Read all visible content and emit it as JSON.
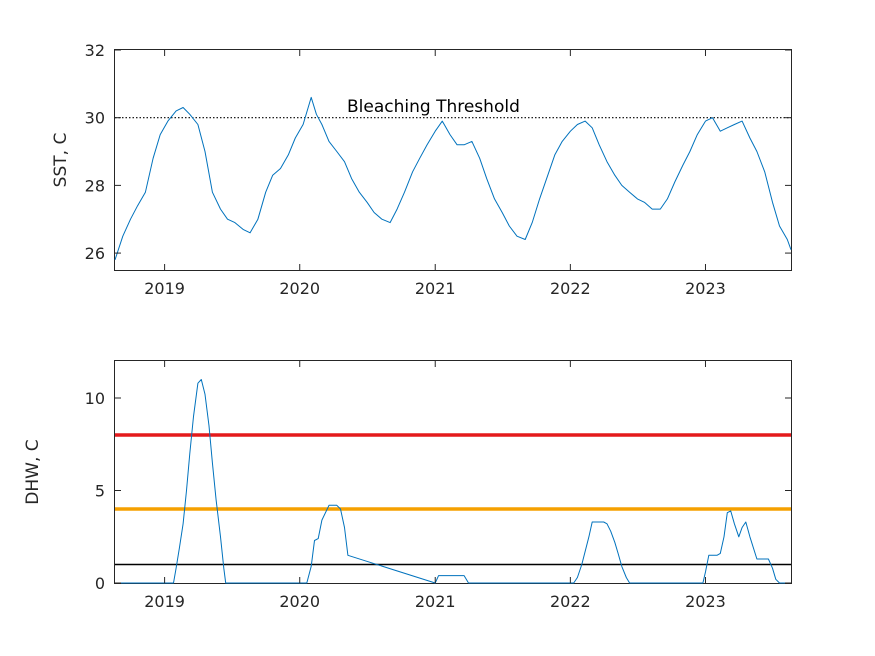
{
  "chart_data": [
    {
      "type": "line",
      "ylabel": "SST, C",
      "xlim": [
        "2018-08-20",
        "2023-08-20"
      ],
      "ylim": [
        25.5,
        32
      ],
      "yticks": [
        26,
        28,
        30,
        32
      ],
      "xticks": [
        {
          "label": "2019",
          "date": "2019-01-01"
        },
        {
          "label": "2020",
          "date": "2020-01-01"
        },
        {
          "label": "2021",
          "date": "2021-01-01"
        },
        {
          "label": "2022",
          "date": "2022-01-01"
        },
        {
          "label": "2023",
          "date": "2023-01-01"
        }
      ],
      "grid": false,
      "series": [
        {
          "color": "#0072bd",
          "x": [
            "2018-08-20",
            "2018-09-10",
            "2018-10-01",
            "2018-10-20",
            "2018-11-10",
            "2018-12-01",
            "2018-12-20",
            "2019-01-10",
            "2019-02-01",
            "2019-02-20",
            "2019-03-10",
            "2019-04-01",
            "2019-04-20",
            "2019-05-10",
            "2019-06-01",
            "2019-06-20",
            "2019-07-10",
            "2019-08-01",
            "2019-08-20",
            "2019-09-10",
            "2019-10-01",
            "2019-10-20",
            "2019-11-10",
            "2019-12-01",
            "2019-12-20",
            "2020-01-10",
            "2020-02-01",
            "2020-02-15",
            "2020-03-01",
            "2020-03-20",
            "2020-04-10",
            "2020-05-01",
            "2020-05-20",
            "2020-06-10",
            "2020-07-01",
            "2020-07-20",
            "2020-08-10",
            "2020-09-01",
            "2020-09-20",
            "2020-10-10",
            "2020-11-01",
            "2020-11-20",
            "2020-12-10",
            "2021-01-01",
            "2021-01-20",
            "2021-02-10",
            "2021-03-01",
            "2021-03-20",
            "2021-04-10",
            "2021-05-01",
            "2021-05-20",
            "2021-06-10",
            "2021-07-01",
            "2021-07-20",
            "2021-08-10",
            "2021-09-01",
            "2021-09-20",
            "2021-10-10",
            "2021-11-01",
            "2021-11-20",
            "2021-12-10",
            "2022-01-01",
            "2022-01-20",
            "2022-02-10",
            "2022-03-01",
            "2022-03-20",
            "2022-04-10",
            "2022-05-01",
            "2022-05-20",
            "2022-06-10",
            "2022-07-01",
            "2022-07-20",
            "2022-08-10",
            "2022-09-01",
            "2022-09-20",
            "2022-10-10",
            "2022-11-01",
            "2022-11-20",
            "2022-12-10",
            "2023-01-01",
            "2023-01-20",
            "2023-02-10",
            "2023-03-01",
            "2023-03-20",
            "2023-04-10",
            "2023-05-01",
            "2023-05-20",
            "2023-06-10",
            "2023-07-01",
            "2023-07-20",
            "2023-08-10",
            "2023-08-20"
          ],
          "y": [
            25.8,
            26.5,
            27.0,
            27.4,
            27.8,
            28.8,
            29.5,
            29.9,
            30.2,
            30.3,
            30.1,
            29.8,
            29.0,
            27.8,
            27.3,
            27.0,
            26.9,
            26.7,
            26.6,
            27.0,
            27.8,
            28.3,
            28.5,
            28.9,
            29.4,
            29.8,
            30.6,
            30.1,
            29.8,
            29.3,
            29.0,
            28.7,
            28.2,
            27.8,
            27.5,
            27.2,
            27.0,
            26.9,
            27.3,
            27.8,
            28.4,
            28.8,
            29.2,
            29.6,
            29.9,
            29.5,
            29.2,
            29.2,
            29.3,
            28.8,
            28.2,
            27.6,
            27.2,
            26.8,
            26.5,
            26.4,
            26.9,
            27.6,
            28.3,
            28.9,
            29.3,
            29.6,
            29.8,
            29.9,
            29.7,
            29.2,
            28.7,
            28.3,
            28.0,
            27.8,
            27.6,
            27.5,
            27.3,
            27.3,
            27.6,
            28.1,
            28.6,
            29.0,
            29.5,
            29.9,
            30.0,
            29.6,
            29.7,
            29.8,
            29.9,
            29.4,
            29.0,
            28.4,
            27.5,
            26.8,
            26.4,
            26.1
          ]
        }
      ],
      "reference_lines": [
        {
          "y": 30,
          "label": "Bleaching Threshold",
          "style": "dotted",
          "color": "#000000"
        }
      ]
    },
    {
      "type": "line",
      "ylabel": "DHW, C",
      "xlim": [
        "2018-08-20",
        "2023-08-20"
      ],
      "ylim": [
        0,
        12
      ],
      "yticks": [
        0,
        5,
        10
      ],
      "xticks": [
        {
          "label": "2019",
          "date": "2019-01-01"
        },
        {
          "label": "2020",
          "date": "2020-01-01"
        },
        {
          "label": "2021",
          "date": "2021-01-01"
        },
        {
          "label": "2022",
          "date": "2022-01-01"
        },
        {
          "label": "2023",
          "date": "2023-01-01"
        }
      ],
      "grid": false,
      "series": [
        {
          "color": "#0072bd",
          "x": [
            "2018-08-20",
            "2019-01-25",
            "2019-02-01",
            "2019-02-10",
            "2019-02-20",
            "2019-03-01",
            "2019-03-10",
            "2019-03-20",
            "2019-04-01",
            "2019-04-10",
            "2019-04-20",
            "2019-05-01",
            "2019-05-10",
            "2019-05-20",
            "2019-06-01",
            "2019-06-10",
            "2019-06-15",
            "2020-01-20",
            "2020-02-01",
            "2020-02-10",
            "2020-02-20",
            "2020-03-01",
            "2020-03-20",
            "2020-04-01",
            "2020-04-10",
            "2020-04-20",
            "2020-05-01",
            "2020-05-10",
            "2021-01-01",
            "2021-01-10",
            "2021-03-20",
            "2021-04-01",
            "2022-01-10",
            "2022-01-20",
            "2022-02-01",
            "2022-02-20",
            "2022-03-01",
            "2022-03-20",
            "2022-04-01",
            "2022-04-10",
            "2022-04-20",
            "2022-05-01",
            "2022-05-10",
            "2022-05-20",
            "2022-06-01",
            "2022-06-10",
            "2022-06-15",
            "2022-12-25",
            "2023-01-01",
            "2023-01-10",
            "2023-02-01",
            "2023-02-10",
            "2023-02-20",
            "2023-03-01",
            "2023-03-10",
            "2023-03-20",
            "2023-04-01",
            "2023-04-10",
            "2023-04-20",
            "2023-05-01",
            "2023-05-20",
            "2023-06-10",
            "2023-06-20",
            "2023-07-01",
            "2023-07-10",
            "2023-07-20",
            "2023-08-20"
          ],
          "y": [
            0,
            0,
            0.8,
            1.9,
            3.2,
            5.0,
            7.0,
            9.0,
            10.8,
            11.0,
            10.2,
            8.5,
            6.5,
            4.5,
            2.5,
            0.8,
            0,
            0,
            0.9,
            2.3,
            2.4,
            3.4,
            4.2,
            4.2,
            4.2,
            4.0,
            3.0,
            1.5,
            0,
            0.4,
            0.4,
            0,
            0,
            0.3,
            1.0,
            2.5,
            3.3,
            3.3,
            3.3,
            3.2,
            2.8,
            2.2,
            1.6,
            0.9,
            0.3,
            0,
            0,
            0,
            0.6,
            1.5,
            1.5,
            1.6,
            2.5,
            3.8,
            3.9,
            3.2,
            2.5,
            3.0,
            3.3,
            2.5,
            1.3,
            1.3,
            1.3,
            0.8,
            0.2,
            0,
            0
          ]
        }
      ],
      "reference_lines": [
        {
          "y": 8,
          "color": "#e41a1c",
          "style": "solid"
        },
        {
          "y": 4,
          "color": "#f5a000",
          "style": "solid"
        },
        {
          "y": 1,
          "color": "#000000",
          "style": "solid"
        }
      ]
    }
  ]
}
